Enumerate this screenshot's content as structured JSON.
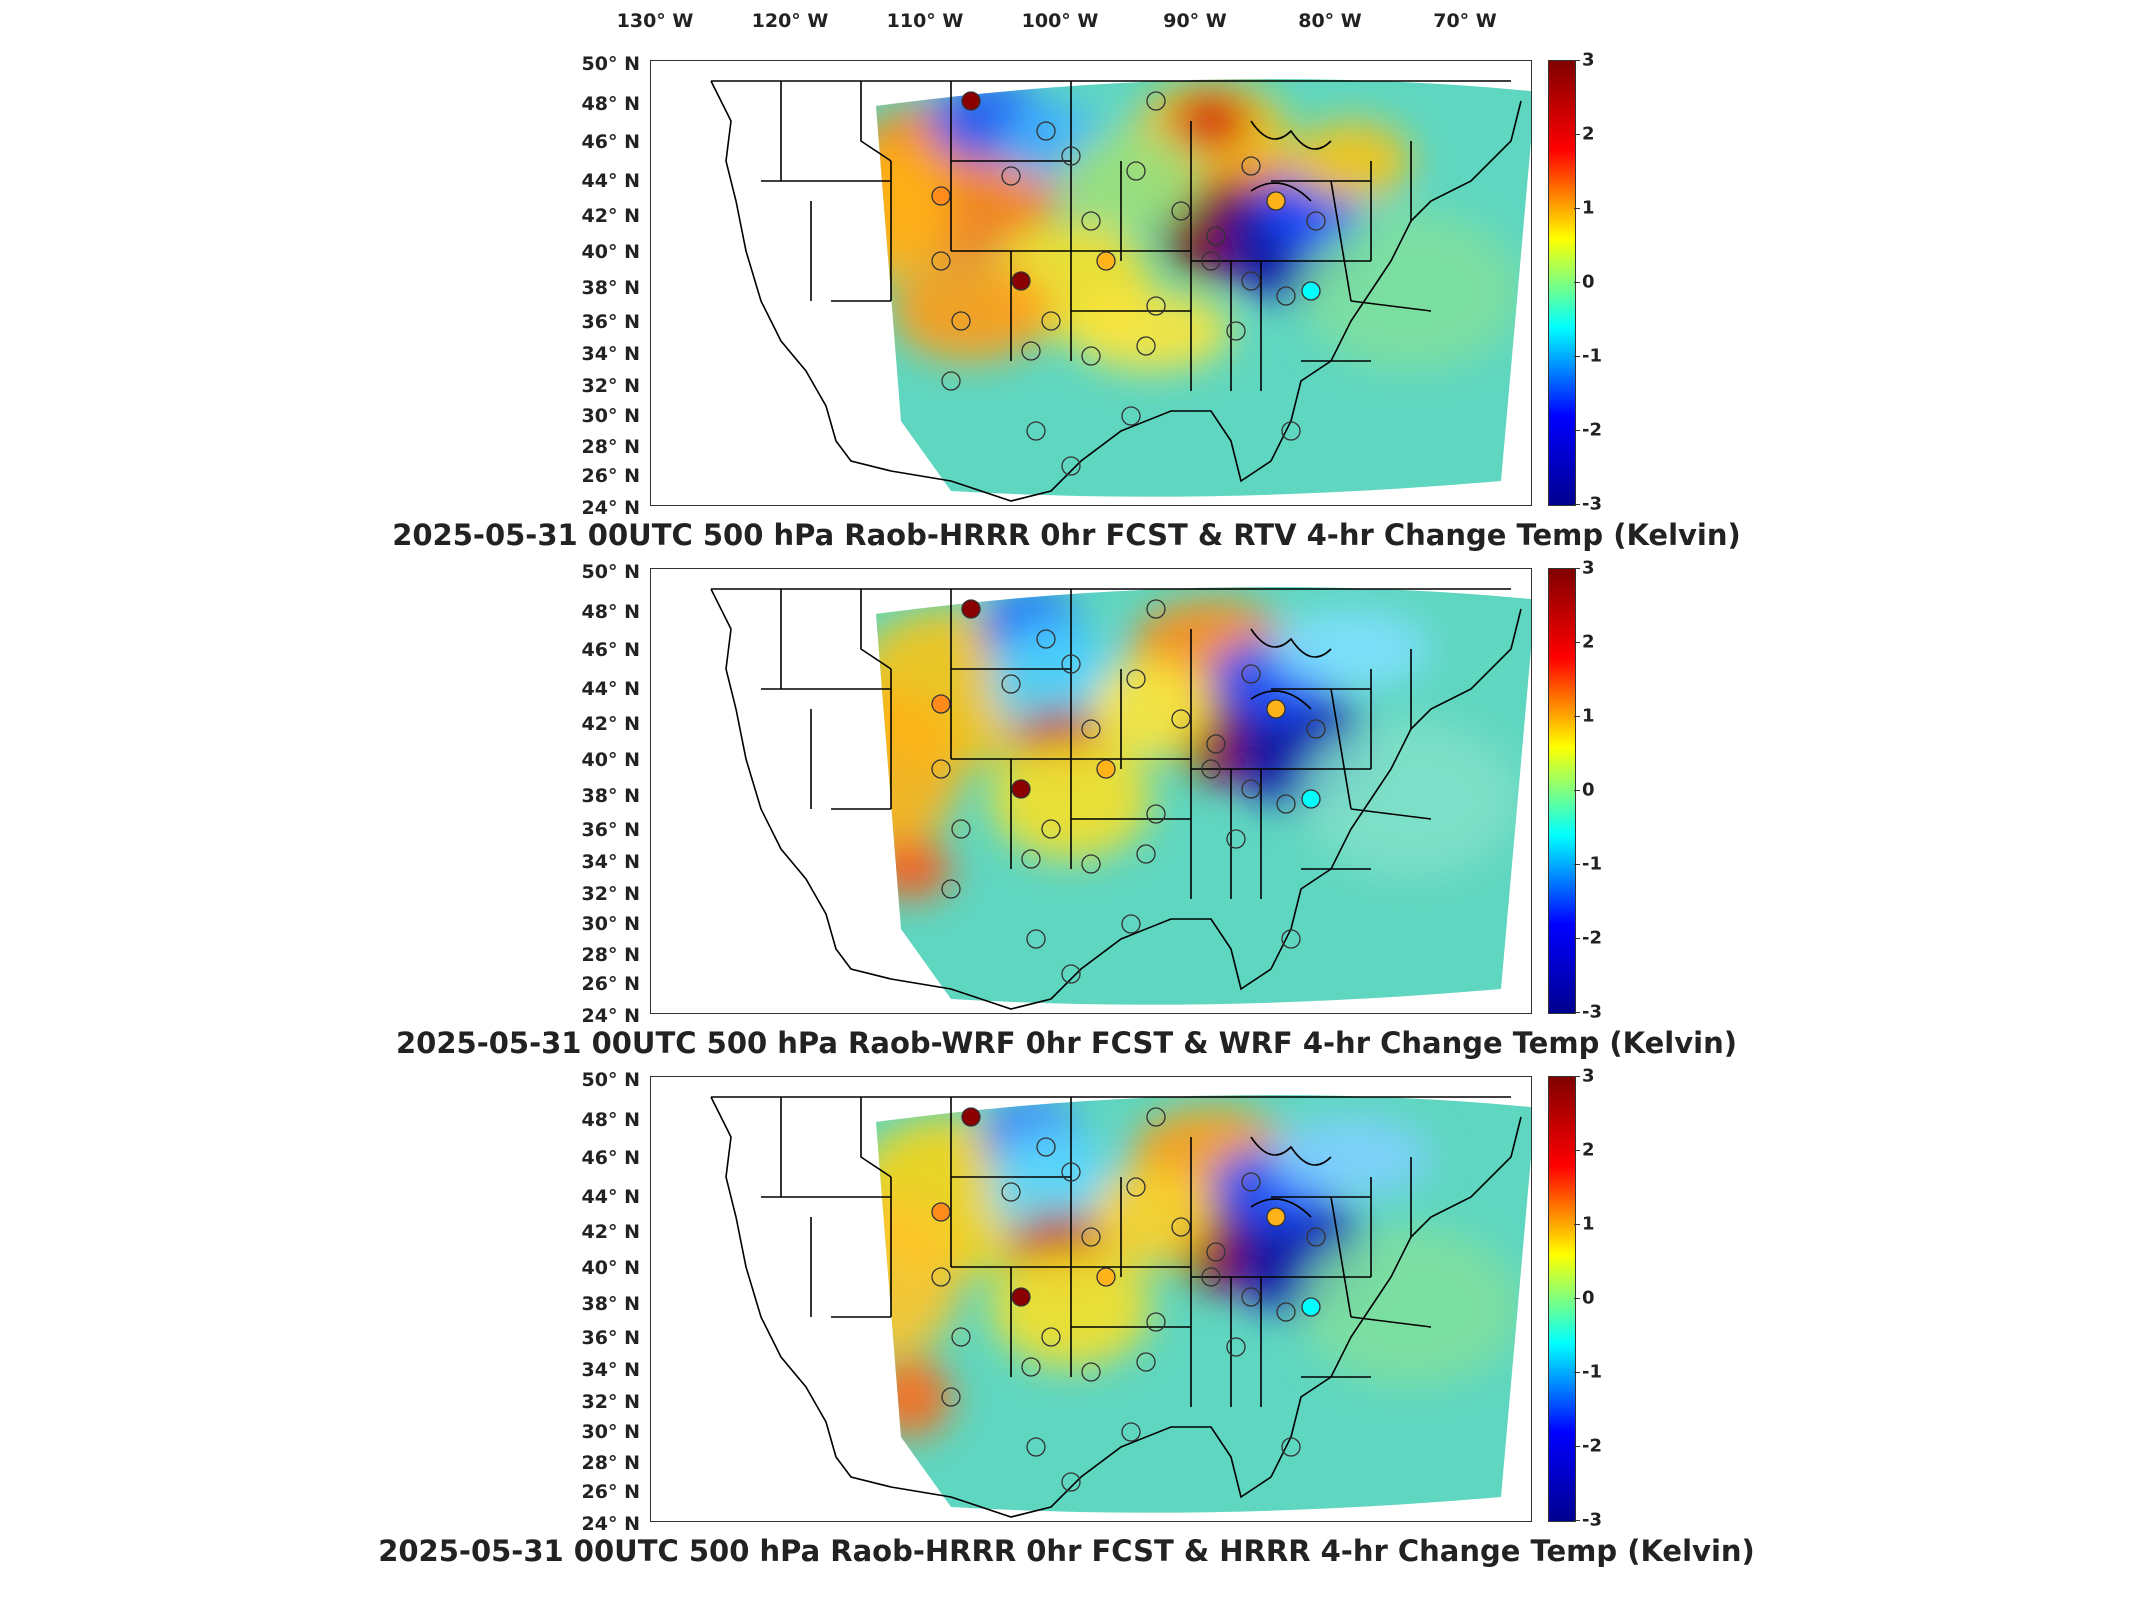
{
  "lon_labels": [
    "130° W",
    "120° W",
    "110° W",
    "100° W",
    "90° W",
    "80° W",
    "70° W"
  ],
  "lat_labels": [
    "50° N",
    "48° N",
    "46° N",
    "44° N",
    "42° N",
    "40° N",
    "38° N",
    "36° N",
    "34° N",
    "32° N",
    "30° N",
    "28° N",
    "26° N",
    "24° N"
  ],
  "colorbar": {
    "ticks": [
      "3",
      "2",
      "1",
      "0",
      "-1",
      "-2",
      "-3"
    ],
    "range": [
      -3,
      3
    ],
    "colormap": "jet",
    "colors": [
      "#00008f",
      "#0000ff",
      "#00ffff",
      "#ffff00",
      "#ff0000",
      "#800000"
    ]
  },
  "panels": [
    {
      "title": "2025-05-31 00UTC 500 hPa Raob-HRRR 0hr FCST & RTV 4-hr Change Temp (Kelvin)"
    },
    {
      "title": "2025-05-31 00UTC 500 hPa Raob-WRF 0hr FCST & WRF 4-hr Change Temp (Kelvin)"
    },
    {
      "title": "2025-05-31 00UTC 500 hPa Raob-HRRR 0hr FCST & HRRR 4-hr Change Temp (Kelvin)"
    }
  ],
  "map_data": {
    "projection": "Lambert conformal (CONUS)",
    "lon_range": [
      "130° W",
      "65° W"
    ],
    "lat_range": [
      "24° N",
      "50° N"
    ],
    "raob_stations_marker": "circle colored by Raob-model temperature difference (K)"
  }
}
